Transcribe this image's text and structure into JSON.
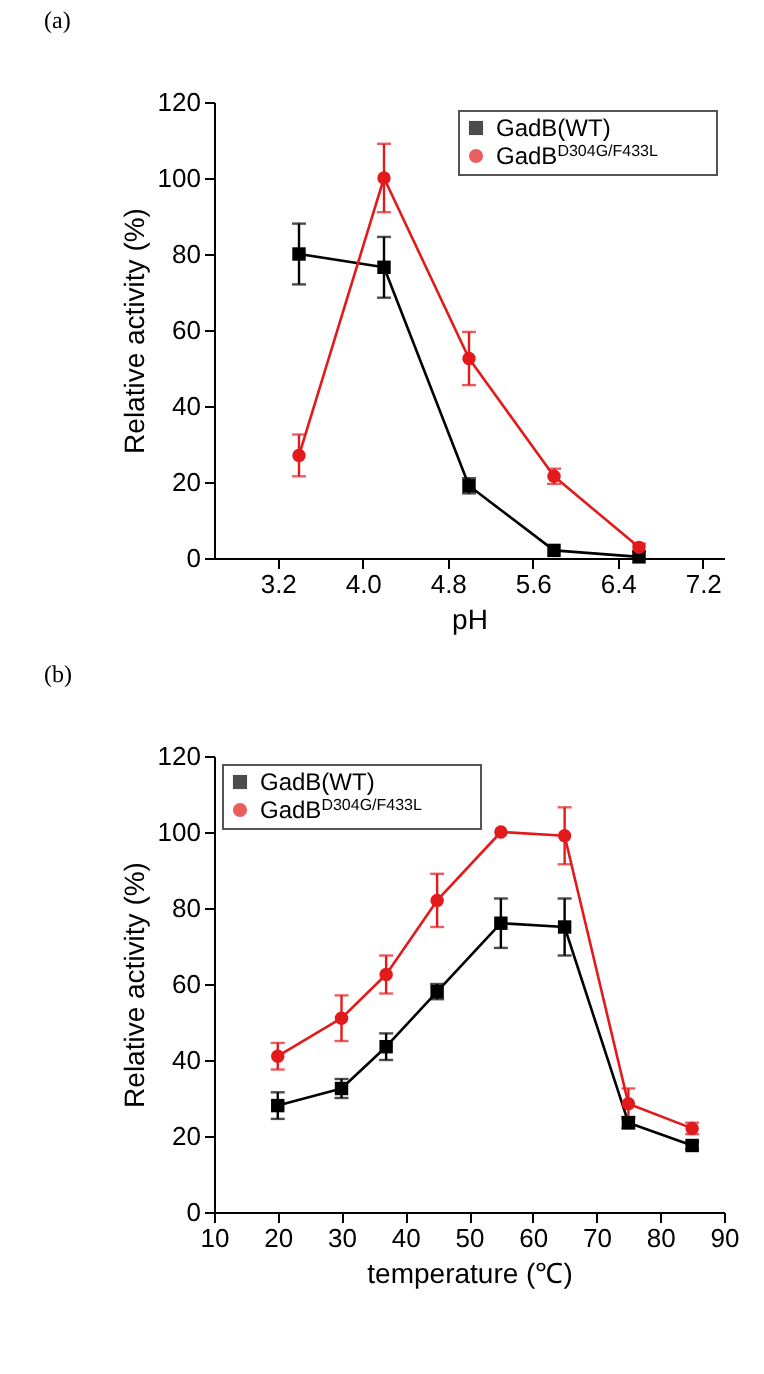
{
  "chart_data": [
    {
      "type": "line",
      "title": "(a)",
      "xlabel": "pH",
      "ylabel": "Relative activity (%)",
      "x": [
        3.4,
        4.2,
        5.0,
        5.8,
        6.6
      ],
      "xlim": [
        2.6,
        7.4
      ],
      "xticks": [
        3.2,
        {
          "value": 4.0,
          "label": "4.0"
        },
        4.8,
        5.6,
        6.4,
        7.2
      ],
      "ylim": [
        0,
        120
      ],
      "yticks": [
        0,
        20,
        40,
        60,
        80,
        100,
        120
      ],
      "grid": false,
      "legend": "top right",
      "series": [
        {
          "name": "GadB(WT)",
          "color": "#000000",
          "marker": "square",
          "values": [
            80,
            76.5,
            19,
            2,
            0.3
          ],
          "errors": [
            8,
            8,
            2,
            null,
            null
          ]
        },
        {
          "name": "GadB$^{D304G/F433L}$",
          "color": "#e31a1c",
          "marker": "circle",
          "values": [
            27,
            100,
            52.5,
            21.5,
            2.8
          ],
          "errors": [
            5.5,
            9,
            7,
            2,
            1
          ]
        }
      ]
    },
    {
      "type": "line",
      "title": "(b)",
      "xlabel": "temperature (℃)",
      "ylabel": "Relative activity (%)",
      "x": [
        20,
        30,
        37,
        45,
        55,
        65,
        75,
        85
      ],
      "xlim": [
        10,
        90
      ],
      "xticks": [
        10,
        20,
        30,
        40,
        50,
        60,
        70,
        80,
        90
      ],
      "ylim": [
        0,
        120
      ],
      "yticks": [
        0,
        20,
        40,
        60,
        80,
        100,
        120
      ],
      "grid": false,
      "legend": "top left",
      "series": [
        {
          "name": "GadB(WT)",
          "color": "#000000",
          "marker": "square",
          "values": [
            28,
            32.5,
            43.5,
            58,
            76,
            75,
            23.5,
            17.5
          ],
          "errors": [
            3.5,
            2.5,
            3.5,
            2,
            6.5,
            7.5,
            1.5,
            1
          ]
        },
        {
          "name": "GadB$^{D304G/F433L}$",
          "color": "#e31a1c",
          "marker": "circle",
          "values": [
            41,
            51,
            62.5,
            82,
            100,
            99,
            28.5,
            22
          ],
          "errors": [
            3.5,
            6,
            5,
            7,
            null,
            7.5,
            4,
            1.5
          ]
        }
      ]
    }
  ]
}
